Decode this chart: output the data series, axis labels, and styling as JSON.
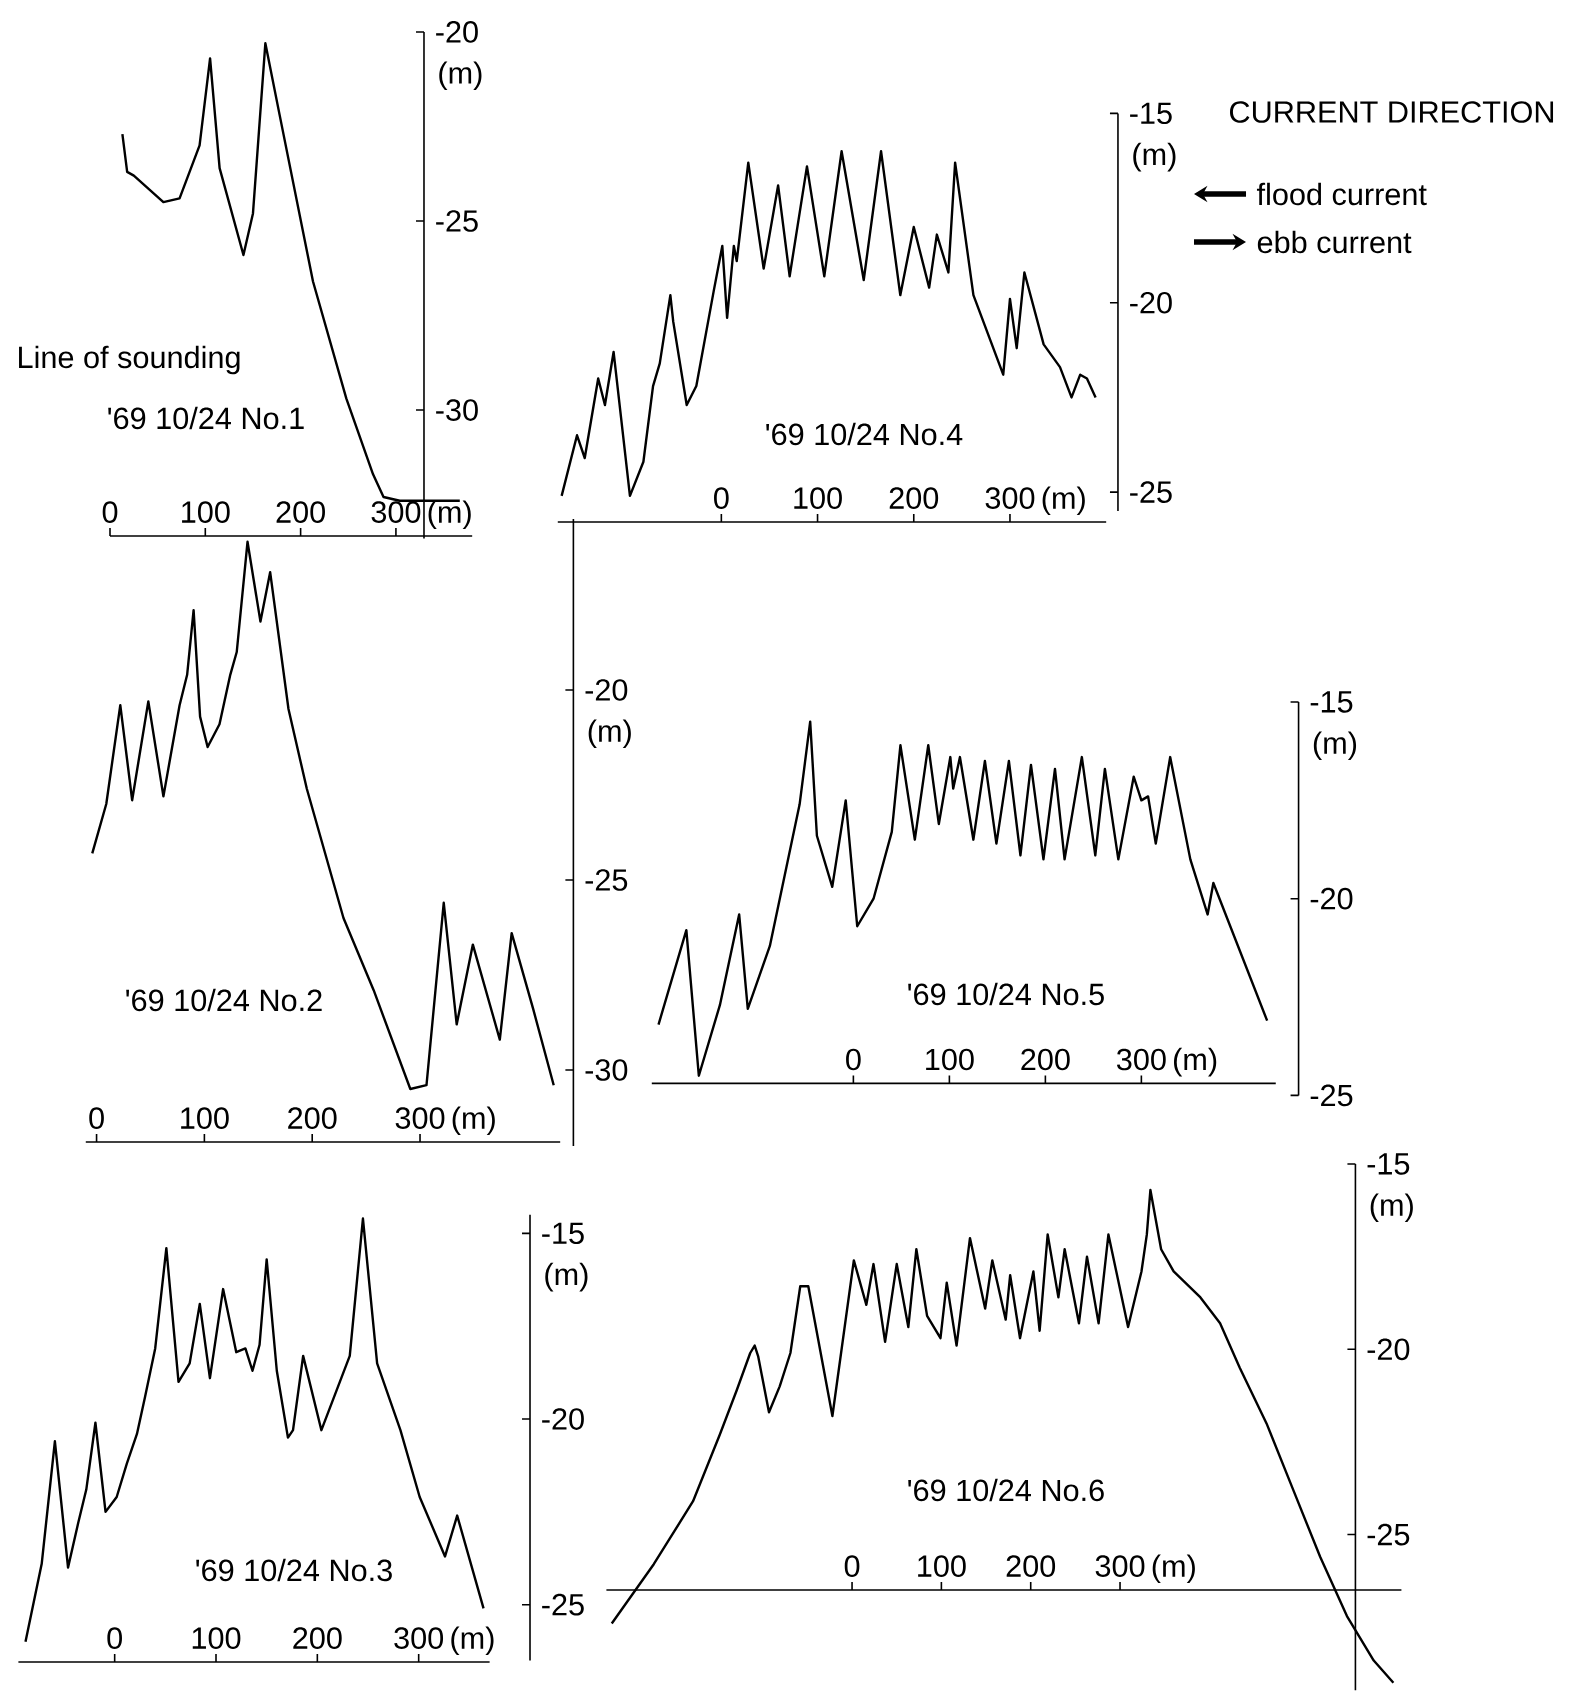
{
  "chart_data": [
    {
      "type": "line",
      "title": "'69 10/24 No.1",
      "xlabel": "(m)",
      "ylabel": "(m)",
      "annotations": [
        "Line of sounding"
      ],
      "color": "#000000",
      "xlim": [
        0,
        380
      ],
      "ylim": [
        -33.4,
        -20
      ],
      "xticks": [
        0,
        100,
        200,
        300
      ],
      "yticks": [
        -20,
        -25,
        -30
      ],
      "x": [
        13,
        18,
        25,
        56,
        73,
        94,
        105,
        115,
        140,
        150,
        163,
        178,
        213,
        248,
        276,
        287,
        304,
        332,
        367
      ],
      "values": [
        -22.7,
        -23.7,
        -23.8,
        -24.5,
        -24.4,
        -23.0,
        -20.7,
        -23.6,
        -25.9,
        -24.8,
        -20.3,
        -22.2,
        -26.6,
        -29.7,
        -31.7,
        -32.3,
        -32.4,
        -32.4,
        -32.4
      ]
    },
    {
      "type": "line",
      "title": "'69 10/24 No.4",
      "xlabel": "(m)",
      "ylabel": "(m)",
      "annotations": [
        "CURRENT DIRECTION",
        "flood current",
        "ebb current"
      ],
      "color": "#000000",
      "xlim": [
        -170,
        400
      ],
      "ylim": [
        -25.5,
        -15
      ],
      "xticks": [
        0,
        100,
        200,
        300
      ],
      "yticks": [
        -15,
        -20,
        -25
      ],
      "x": [
        -166,
        -150,
        -142,
        -128,
        -121,
        -112,
        -95,
        -81,
        -71,
        -64,
        -53,
        -50,
        -36,
        -26,
        -8,
        1,
        6,
        13,
        16,
        28,
        44,
        59,
        71,
        89,
        107,
        125,
        148,
        166,
        186,
        200,
        216,
        224,
        236,
        243,
        262,
        293,
        300,
        307,
        315,
        335,
        352,
        364,
        373,
        380,
        389
      ],
      "values": [
        -25.1,
        -23.5,
        -24.1,
        -22.0,
        -22.7,
        -21.3,
        -25.1,
        -24.2,
        -22.2,
        -21.6,
        -19.8,
        -20.5,
        -22.7,
        -22.2,
        -19.7,
        -18.5,
        -20.4,
        -18.5,
        -18.9,
        -16.3,
        -19.1,
        -16.9,
        -19.3,
        -16.4,
        -19.3,
        -16.0,
        -19.4,
        -16.0,
        -19.8,
        -18.0,
        -19.6,
        -18.2,
        -19.2,
        -16.3,
        -19.8,
        -21.9,
        -19.9,
        -21.2,
        -19.2,
        -21.1,
        -21.7,
        -22.5,
        -21.9,
        -22.0,
        -22.5
      ]
    },
    {
      "type": "line",
      "title": "'69 10/24 No.2",
      "xlabel": "(m)",
      "ylabel": "(m)",
      "color": "#000000",
      "xlim": [
        -10,
        430
      ],
      "ylim": [
        -32,
        -15.5
      ],
      "xticks": [
        0,
        100,
        200,
        300
      ],
      "yticks": [
        -20,
        -25,
        -30
      ],
      "x": [
        -4,
        9,
        22,
        33,
        48,
        62,
        77,
        84,
        90,
        96,
        103,
        114,
        124,
        130,
        140,
        152,
        161,
        178,
        195,
        229,
        257,
        291,
        306,
        322,
        334,
        349,
        374,
        385,
        405,
        424
      ],
      "values": [
        -24.3,
        -23.0,
        -20.4,
        -22.9,
        -20.3,
        -22.8,
        -20.4,
        -19.6,
        -17.9,
        -20.7,
        -21.5,
        -20.9,
        -19.6,
        -19.0,
        -16.1,
        -18.2,
        -16.9,
        -20.5,
        -22.6,
        -26.0,
        -27.9,
        -30.5,
        -30.4,
        -25.6,
        -28.8,
        -26.7,
        -29.2,
        -26.4,
        -28.4,
        -30.4
      ]
    },
    {
      "type": "line",
      "title": "'69 10/24 No.5",
      "xlabel": "(m)",
      "ylabel": "(m)",
      "color": "#000000",
      "xlim": [
        -210,
        440
      ],
      "ylim": [
        -25,
        -15
      ],
      "xticks": [
        0,
        100,
        200,
        300
      ],
      "yticks": [
        -15,
        -20,
        -25
      ],
      "x": [
        -203,
        -174,
        -161,
        -139,
        -119,
        -110,
        -87,
        -56,
        -45,
        -38,
        -22,
        -8,
        4,
        21,
        40,
        49,
        64,
        78,
        89,
        101,
        104,
        111,
        125,
        137,
        149,
        162,
        174,
        185,
        198,
        210,
        220,
        238,
        252,
        262,
        276,
        292,
        300,
        307,
        315,
        330,
        351,
        369,
        375,
        431
      ],
      "values": [
        -23.2,
        -20.8,
        -24.5,
        -22.7,
        -20.4,
        -22.8,
        -21.2,
        -17.6,
        -15.5,
        -18.4,
        -19.7,
        -17.5,
        -20.7,
        -20.0,
        -18.3,
        -16.1,
        -18.5,
        -16.1,
        -18.1,
        -16.4,
        -17.2,
        -16.4,
        -18.5,
        -16.5,
        -18.6,
        -16.5,
        -18.9,
        -16.6,
        -19.0,
        -16.7,
        -19.0,
        -16.4,
        -18.9,
        -16.7,
        -19.0,
        -16.9,
        -17.5,
        -17.4,
        -18.6,
        -16.4,
        -19.0,
        -20.4,
        -19.6,
        -23.1
      ]
    },
    {
      "type": "line",
      "title": "'69 10/24 No.3",
      "xlabel": "(m)",
      "ylabel": "(m)",
      "color": "#000000",
      "xlim": [
        -95,
        370
      ],
      "ylim": [
        -26.5,
        -14.5
      ],
      "xticks": [
        0,
        100,
        200,
        300
      ],
      "yticks": [
        -15,
        -20,
        -25
      ],
      "x": [
        -88,
        -72,
        -59,
        -46,
        -36,
        -28,
        -19,
        -9,
        2,
        12,
        22,
        30,
        40,
        51,
        63,
        74,
        84,
        94,
        107,
        120,
        129,
        136,
        143,
        150,
        160,
        171,
        176,
        186,
        204,
        232,
        245,
        259,
        282,
        301,
        326,
        338,
        364
      ],
      "values": [
        -26.0,
        -23.9,
        -20.6,
        -24.0,
        -22.8,
        -21.9,
        -20.1,
        -22.5,
        -22.1,
        -21.2,
        -20.4,
        -19.4,
        -18.1,
        -15.4,
        -19.0,
        -18.5,
        -16.9,
        -18.9,
        -16.5,
        -18.2,
        -18.1,
        -18.7,
        -18.0,
        -15.7,
        -18.7,
        -20.5,
        -20.3,
        -18.3,
        -20.3,
        -18.3,
        -14.6,
        -18.5,
        -20.3,
        -22.1,
        -23.7,
        -22.6,
        -25.1
      ]
    },
    {
      "type": "line",
      "title": "'69 10/24 No.6",
      "xlabel": "(m)",
      "ylabel": "(m)",
      "color": "#000000",
      "xlim": [
        -275,
        615
      ],
      "ylim": [
        -29.2,
        -15
      ],
      "xticks": [
        0,
        100,
        200,
        300
      ],
      "yticks": [
        -15,
        -20,
        -25
      ],
      "x": [
        -269,
        -222,
        -178,
        -148,
        -129,
        -114,
        -109,
        -105,
        -93,
        -81,
        -69,
        -58,
        -49,
        -22,
        2,
        16,
        24,
        37,
        50,
        63,
        72,
        84,
        99,
        106,
        117,
        132,
        149,
        157,
        172,
        177,
        188,
        203,
        210,
        219,
        231,
        238,
        254,
        263,
        276,
        287,
        309,
        324,
        330,
        334,
        346,
        360,
        390,
        412,
        434,
        464,
        494,
        524,
        554,
        584,
        606
      ],
      "values": [
        -27.4,
        -25.8,
        -24.1,
        -22.3,
        -21.1,
        -20.1,
        -19.9,
        -20.2,
        -21.7,
        -21.0,
        -20.1,
        -18.3,
        -18.3,
        -21.8,
        -17.6,
        -18.8,
        -17.7,
        -19.8,
        -17.7,
        -19.4,
        -17.3,
        -19.1,
        -19.7,
        -18.2,
        -19.9,
        -17.0,
        -18.9,
        -17.6,
        -19.2,
        -18.0,
        -19.7,
        -17.9,
        -19.5,
        -16.9,
        -18.6,
        -17.3,
        -19.3,
        -17.5,
        -19.3,
        -16.9,
        -19.4,
        -17.9,
        -16.9,
        -15.7,
        -17.3,
        -17.9,
        -18.6,
        -19.3,
        -20.5,
        -22.0,
        -23.8,
        -25.6,
        -27.2,
        -28.4,
        -29.0
      ]
    }
  ]
}
